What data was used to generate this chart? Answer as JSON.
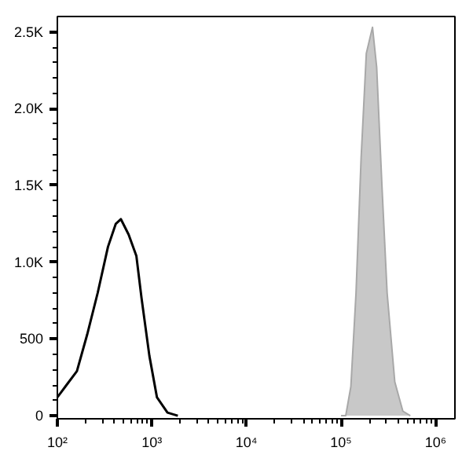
{
  "chart_data": {
    "type": "line",
    "log": "x",
    "xlim": [
      100,
      1600000
    ],
    "ylim": [
      -20,
      2600
    ],
    "xticks": [
      {
        "value": 100,
        "label": "10²"
      },
      {
        "value": 1000,
        "label": "10³"
      },
      {
        "value": 10000,
        "label": "10⁴"
      },
      {
        "value": 100000,
        "label": "10⁵"
      },
      {
        "value": 1000000,
        "label": "10⁶"
      }
    ],
    "yticks": [
      0,
      500,
      {
        "value": 1000,
        "label": "1.0K"
      },
      {
        "value": 1500,
        "label": "1.5K"
      },
      {
        "value": 2000,
        "label": "2.0K"
      },
      {
        "value": 2500,
        "label": "2.5K"
      }
    ],
    "grid": false,
    "series": [
      {
        "color": "#000000",
        "x": [
          100,
          125,
          161,
          207,
          267,
          343,
          415,
          470,
          567,
          685,
          775,
          940,
          1130,
          1460,
          1880
        ],
        "values": [
          120,
          200,
          290,
          530,
          800,
          1100,
          1250,
          1280,
          1180,
          1040,
          770,
          390,
          120,
          20,
          0
        ]
      },
      {
        "type": "area",
        "color": "#c8c8c8",
        "x": [
          100000,
          112000,
          127000,
          144000,
          163000,
          185000,
          215000,
          238000,
          270000,
          307000,
          370000,
          450000,
          540000
        ],
        "values": [
          0,
          0,
          190,
          800,
          1680,
          2360,
          2530,
          2270,
          1510,
          800,
          220,
          30,
          0
        ]
      }
    ]
  }
}
